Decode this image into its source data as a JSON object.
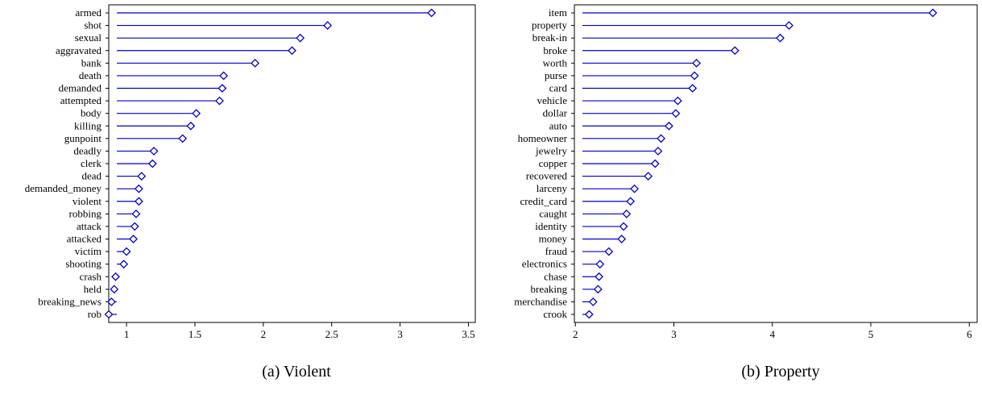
{
  "chart_data": [
    {
      "type": "lollipop",
      "caption": "(a) Violent",
      "categories": [
        "armed",
        "shot",
        "sexual",
        "aggravated",
        "bank",
        "death",
        "demanded",
        "attempted",
        "body",
        "killing",
        "gunpoint",
        "deadly",
        "clerk",
        "dead",
        "demanded_money",
        "violent",
        "robbing",
        "attack",
        "attacked",
        "victim",
        "shooting",
        "crash",
        "held",
        "breaking_news",
        "rob"
      ],
      "values": [
        3.23,
        2.47,
        2.27,
        2.21,
        1.94,
        1.71,
        1.7,
        1.68,
        1.51,
        1.47,
        1.41,
        1.2,
        1.19,
        1.11,
        1.09,
        1.09,
        1.07,
        1.06,
        1.05,
        1.0,
        0.98,
        0.92,
        0.91,
        0.89,
        0.87
      ],
      "xlim": [
        0.87,
        3.55
      ],
      "xticks": [
        1,
        1.5,
        2,
        2.5,
        3,
        3.5
      ],
      "xtick_labels": [
        "1",
        "1.5",
        "2",
        "2.5",
        "3",
        "3.5"
      ],
      "color": "#0000cc"
    },
    {
      "type": "lollipop",
      "caption": "(b) Property",
      "categories": [
        "item",
        "property",
        "break-in",
        "broke",
        "worth",
        "purse",
        "card",
        "vehicle",
        "dollar",
        "auto",
        "homeowner",
        "jewelry",
        "copper",
        "recovered",
        "larceny",
        "credit_card",
        "caught",
        "identity",
        "money",
        "fraud",
        "electronics",
        "chase",
        "breaking",
        "merchandise",
        "crook"
      ],
      "values": [
        5.63,
        4.17,
        4.08,
        3.62,
        3.23,
        3.21,
        3.19,
        3.04,
        3.02,
        2.95,
        2.87,
        2.84,
        2.81,
        2.74,
        2.6,
        2.56,
        2.52,
        2.49,
        2.47,
        2.34,
        2.25,
        2.24,
        2.23,
        2.18,
        2.14
      ],
      "xlim": [
        1.99,
        6.08
      ],
      "xticks": [
        2,
        3,
        4,
        5,
        6
      ],
      "xtick_labels": [
        "2",
        "3",
        "4",
        "5",
        "6"
      ],
      "color": "#0000cc"
    }
  ]
}
